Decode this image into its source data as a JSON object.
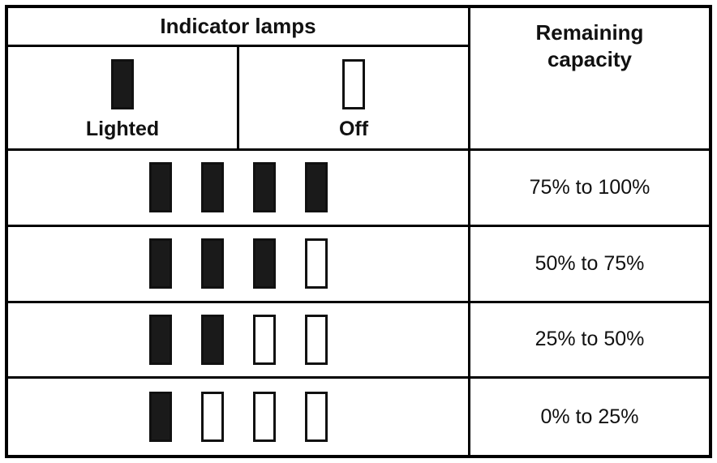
{
  "header": {
    "indicator_lamps": "Indicator lamps",
    "remaining_capacity": "Remaining capacity"
  },
  "legend": {
    "lighted_label": "Lighted",
    "off_label": "Off"
  },
  "rows": [
    {
      "lamps": [
        true,
        true,
        true,
        true
      ],
      "capacity": "75% to 100%"
    },
    {
      "lamps": [
        true,
        true,
        true,
        false
      ],
      "capacity": "50% to 75%"
    },
    {
      "lamps": [
        true,
        true,
        false,
        false
      ],
      "capacity": "25% to 50%"
    },
    {
      "lamps": [
        true,
        false,
        false,
        false
      ],
      "capacity": "0% to 25%"
    }
  ],
  "colors": {
    "border": "#000000",
    "lamp_on": "#1a1a1a",
    "lamp_off": "#ffffff"
  }
}
